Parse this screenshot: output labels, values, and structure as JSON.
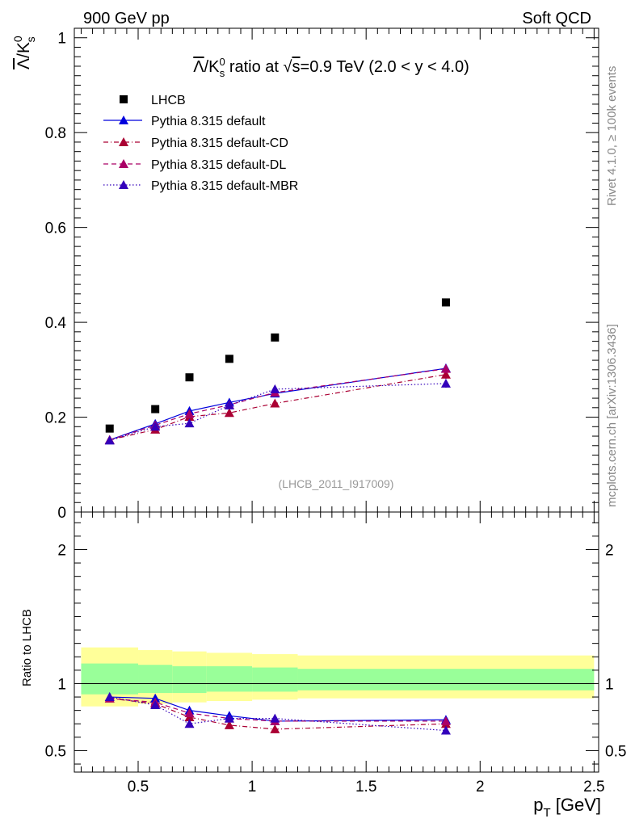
{
  "header": {
    "left": "900 GeV pp",
    "right": "Soft QCD"
  },
  "side_labels": {
    "rivet": "Rivet 4.1.0, ≥ 100k events",
    "mcplots": "mcplots.cern.ch [arXiv:1306.3436]"
  },
  "chart_data": [
    {
      "type": "scatter",
      "title_parts": {
        "lambda": "Λ",
        "slash_k": "/K",
        "sup0": "0",
        "sub_s": "s",
        "ratio_at": " ratio at ",
        "sqrt": "√",
        "s": "s",
        "rest": "=0.9 TeV (2.0 < y < 4.0)"
      },
      "ylabel_parts": {
        "lambda": "Λ",
        "slash_k": "/K",
        "sup0": "0",
        "sub_s": "s"
      },
      "xlim": [
        0.22,
        2.52
      ],
      "ylim": [
        0,
        1.02
      ],
      "yticks": [
        {
          "v": 0,
          "label": "0"
        },
        {
          "v": 0.2,
          "label": "0.2"
        },
        {
          "v": 0.4,
          "label": "0.4"
        },
        {
          "v": 0.6,
          "label": "0.6"
        },
        {
          "v": 0.8,
          "label": "0.8"
        },
        {
          "v": 1.0,
          "label": "1"
        }
      ],
      "watermark": "(LHCB_2011_I917009)",
      "legend_position": "top-left",
      "series": [
        {
          "name": "LHCB",
          "marker": "square",
          "color": "#000000",
          "line": "none",
          "x": [
            0.375,
            0.575,
            0.725,
            0.9,
            1.1,
            1.85
          ],
          "y": [
            0.176,
            0.217,
            0.284,
            0.323,
            0.368,
            0.442
          ]
        },
        {
          "name": "Pythia 8.315 default",
          "marker": "triangle",
          "color": "#0000dd",
          "line": "solid",
          "x": [
            0.375,
            0.575,
            0.725,
            0.9,
            1.1,
            1.85
          ],
          "y": [
            0.152,
            0.186,
            0.213,
            0.231,
            0.25,
            0.303
          ],
          "err": [
            0.003,
            0.004,
            0.005,
            0.006,
            0.007,
            0.009
          ]
        },
        {
          "name": "Pythia 8.315 default-CD",
          "marker": "triangle",
          "color": "#aa0033",
          "line": "dashdot",
          "x": [
            0.375,
            0.575,
            0.725,
            0.9,
            1.1,
            1.85
          ],
          "y": [
            0.152,
            0.174,
            0.201,
            0.209,
            0.229,
            0.29
          ],
          "err": [
            0.003,
            0.004,
            0.005,
            0.006,
            0.007,
            0.009
          ]
        },
        {
          "name": "Pythia 8.315 default-DL",
          "marker": "triangle",
          "color": "#aa0066",
          "line": "dashed",
          "x": [
            0.375,
            0.575,
            0.725,
            0.9,
            1.1,
            1.85
          ],
          "y": [
            0.152,
            0.183,
            0.207,
            0.226,
            0.252,
            0.302
          ],
          "err": [
            0.003,
            0.004,
            0.005,
            0.006,
            0.007,
            0.009
          ]
        },
        {
          "name": "Pythia 8.315 default-MBR",
          "marker": "triangle",
          "color": "#3300bb",
          "line": "dotted",
          "x": [
            0.375,
            0.575,
            0.725,
            0.9,
            1.1,
            1.85
          ],
          "y": [
            0.151,
            0.18,
            0.187,
            0.225,
            0.259,
            0.271
          ],
          "err": [
            0.003,
            0.004,
            0.005,
            0.006,
            0.007,
            0.009
          ]
        }
      ]
    },
    {
      "type": "scatter",
      "ylabel": "Ratio to LHCB",
      "xlabel_parts": {
        "p": "p",
        "sub": "T",
        "unit": " [GeV]"
      },
      "xlim": [
        0.22,
        2.52
      ],
      "ylim": [
        0.34,
        2.28
      ],
      "xticks": [
        {
          "v": 0.5,
          "label": "0.5"
        },
        {
          "v": 1.0,
          "label": "1"
        },
        {
          "v": 1.5,
          "label": "1.5"
        },
        {
          "v": 2.0,
          "label": "2"
        },
        {
          "v": 2.5,
          "label": "2.5"
        }
      ],
      "yticks": [
        {
          "v": 0.5,
          "label": "0.5"
        },
        {
          "v": 1.0,
          "label": "1"
        },
        {
          "v": 2.0,
          "label": "2"
        }
      ],
      "bands": {
        "bin_edges": [
          0.25,
          0.5,
          0.65,
          0.8,
          1.0,
          1.2,
          2.5
        ],
        "yellow": [
          [
            0.83,
            1.27
          ],
          [
            0.85,
            1.25
          ],
          [
            0.86,
            1.24
          ],
          [
            0.87,
            1.23
          ],
          [
            0.88,
            1.22
          ],
          [
            0.89,
            1.21
          ]
        ],
        "green": [
          [
            0.92,
            1.15
          ],
          [
            0.93,
            1.14
          ],
          [
            0.93,
            1.13
          ],
          [
            0.94,
            1.13
          ],
          [
            0.94,
            1.12
          ],
          [
            0.95,
            1.11
          ]
        ],
        "yellow_color": "#ffff99",
        "green_color": "#99ff99"
      },
      "series": [
        {
          "name": "Pythia 8.315 default",
          "color": "#0000dd",
          "line": "solid",
          "x": [
            0.375,
            0.575,
            0.725,
            0.9,
            1.1,
            1.85
          ],
          "y": [
            0.9,
            0.89,
            0.8,
            0.76,
            0.72,
            0.73
          ],
          "err": [
            0.02,
            0.02,
            0.02,
            0.03,
            0.03,
            0.03
          ]
        },
        {
          "name": "Pythia 8.315 default-CD",
          "color": "#aa0033",
          "line": "dashdot",
          "x": [
            0.375,
            0.575,
            0.725,
            0.9,
            1.1,
            1.85
          ],
          "y": [
            0.89,
            0.85,
            0.75,
            0.69,
            0.66,
            0.7
          ],
          "err": [
            0.02,
            0.02,
            0.02,
            0.03,
            0.03,
            0.03
          ]
        },
        {
          "name": "Pythia 8.315 default-DL",
          "color": "#aa0066",
          "line": "dashed",
          "x": [
            0.375,
            0.575,
            0.725,
            0.9,
            1.1,
            1.85
          ],
          "y": [
            0.89,
            0.86,
            0.78,
            0.74,
            0.72,
            0.72
          ],
          "err": [
            0.02,
            0.02,
            0.02,
            0.03,
            0.03,
            0.03
          ]
        },
        {
          "name": "Pythia 8.315 default-MBR",
          "color": "#3300bb",
          "line": "dotted",
          "x": [
            0.375,
            0.575,
            0.725,
            0.9,
            1.1,
            1.85
          ],
          "y": [
            0.9,
            0.84,
            0.7,
            0.74,
            0.74,
            0.65
          ],
          "err": [
            0.02,
            0.02,
            0.02,
            0.03,
            0.03,
            0.03
          ]
        }
      ]
    }
  ]
}
